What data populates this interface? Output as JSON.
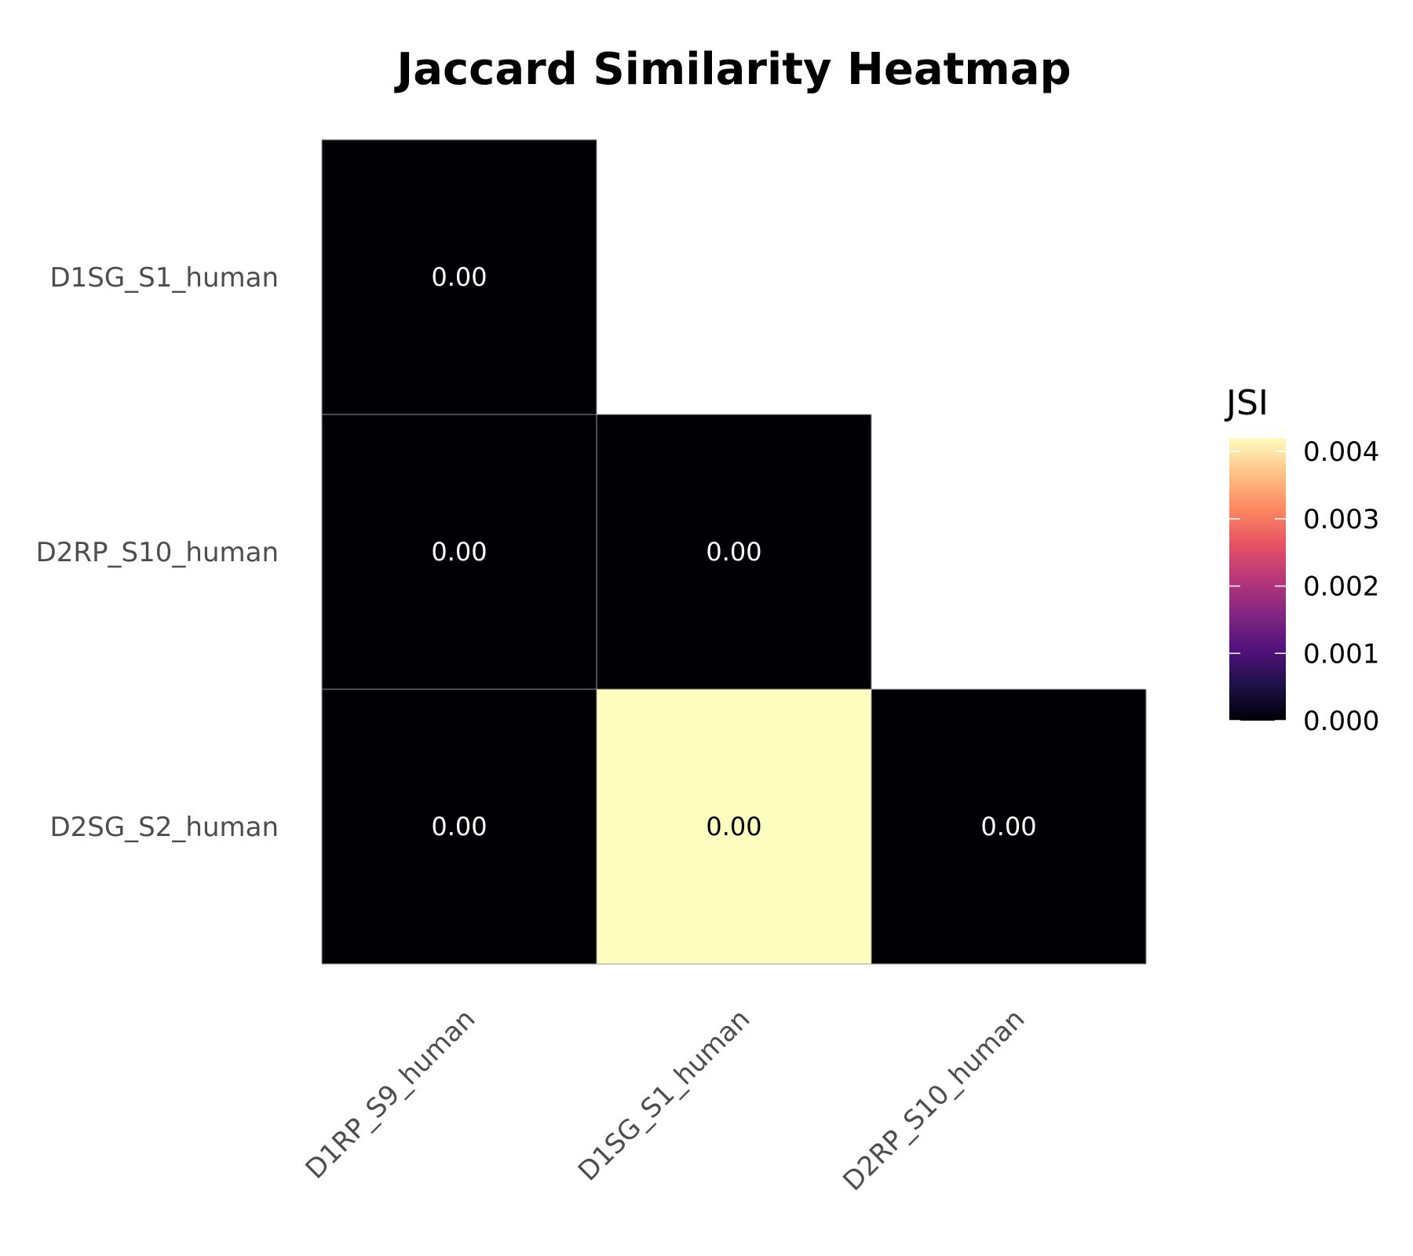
{
  "chart_data": {
    "type": "heatmap",
    "title": "Jaccard Similarity Heatmap",
    "x_categories": [
      "D1RP_S9_human",
      "D1SG_S1_human",
      "D2RP_S10_human"
    ],
    "y_categories": [
      "D1SG_S1_human",
      "D2RP_S10_human",
      "D2SG_S2_human"
    ],
    "cells": [
      {
        "x": "D1RP_S9_human",
        "y": "D1SG_S1_human",
        "value": 0.0,
        "label": "0.00"
      },
      {
        "x": "D1RP_S9_human",
        "y": "D2RP_S10_human",
        "value": 0.0,
        "label": "0.00"
      },
      {
        "x": "D1SG_S1_human",
        "y": "D2RP_S10_human",
        "value": 0.0,
        "label": "0.00"
      },
      {
        "x": "D1RP_S9_human",
        "y": "D2SG_S2_human",
        "value": 0.0,
        "label": "0.00"
      },
      {
        "x": "D1SG_S1_human",
        "y": "D2SG_S2_human",
        "value": 0.0042,
        "label": "0.00"
      },
      {
        "x": "D2RP_S10_human",
        "y": "D2SG_S2_human",
        "value": 0.0,
        "label": "0.00"
      }
    ],
    "colorbar": {
      "title": "JSI",
      "range": [
        0,
        0.0042
      ],
      "ticks": [
        0.0,
        0.001,
        0.002,
        0.003,
        0.004
      ],
      "tick_labels": [
        "0.000",
        "0.001",
        "0.002",
        "0.003",
        "0.004"
      ],
      "colormap": "magma",
      "colors": [
        "#000004",
        "#1d1147",
        "#51127c",
        "#822681",
        "#b73779",
        "#e75263",
        "#fc8961",
        "#fec287",
        "#fcfdbf"
      ]
    },
    "grid": false,
    "legend_position": "right"
  }
}
